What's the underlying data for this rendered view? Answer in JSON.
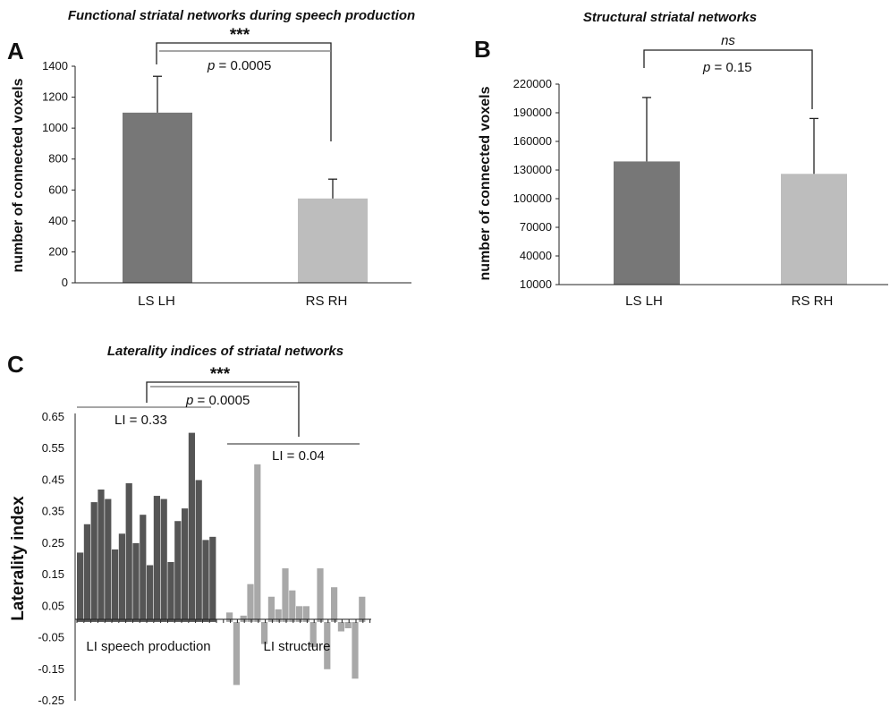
{
  "colors": {
    "dark_bar": "#777777",
    "light_bar": "#bdbdbd",
    "dark_series": "#555555",
    "light_series": "#a8a8a8"
  },
  "chart_data": [
    {
      "panel": "A",
      "type": "bar",
      "title": "Functional striatal networks during speech production",
      "ylabel": "number of connected voxels",
      "ylim": [
        0,
        1400
      ],
      "yticks": [
        0,
        200,
        400,
        600,
        800,
        1000,
        1200,
        1400
      ],
      "categories": [
        "LS LH",
        "RS RH"
      ],
      "values": [
        1100,
        545
      ],
      "errors": [
        235,
        125
      ],
      "significance": {
        "stars": "***",
        "p_label": "p",
        "p_value": " = 0.0005"
      }
    },
    {
      "panel": "B",
      "type": "bar",
      "title": "Structural striatal networks",
      "ylabel": "number of connected voxels",
      "ylim": [
        10000,
        220000
      ],
      "yticks": [
        10000,
        40000,
        70000,
        100000,
        130000,
        160000,
        190000,
        220000
      ],
      "categories": [
        "LS LH",
        "RS RH"
      ],
      "values": [
        139000,
        126000
      ],
      "errors": [
        67000,
        58000
      ],
      "significance": {
        "label": "ns",
        "p_label": "p",
        "p_value": " = 0.15"
      }
    },
    {
      "panel": "C",
      "type": "bar",
      "title": "Laterality indices of striatal networks",
      "ylabel": "Laterality index",
      "ylim": [
        -0.25,
        0.65
      ],
      "yticks": [
        "0.65",
        "0.55",
        "0.45",
        "0.35",
        "0.25",
        "0.15",
        "0.05",
        "-0.05",
        "-0.15",
        "-0.25"
      ],
      "baseline": 0,
      "series": [
        {
          "name": "LI speech production",
          "values": [
            0.22,
            0.31,
            0.38,
            0.42,
            0.39,
            0.23,
            0.28,
            0.44,
            0.25,
            0.34,
            0.18,
            0.4,
            0.39,
            0.19,
            0.32,
            0.36,
            0.6,
            0.45,
            0.26,
            0.27
          ]
        },
        {
          "name": "LI structure",
          "values": [
            0.03,
            -0.2,
            0.02,
            0.12,
            0.5,
            -0.07,
            0.08,
            0.04,
            0.17,
            0.1,
            0.05,
            0.05,
            -0.08,
            0.17,
            -0.15,
            0.11,
            -0.03,
            -0.02,
            -0.18,
            0.08
          ]
        }
      ],
      "mean_labels": [
        "LI = 0.33",
        "LI = 0.04"
      ],
      "significance": {
        "stars": "***",
        "p_label": "p",
        "p_value": " = 0.0005"
      }
    }
  ]
}
